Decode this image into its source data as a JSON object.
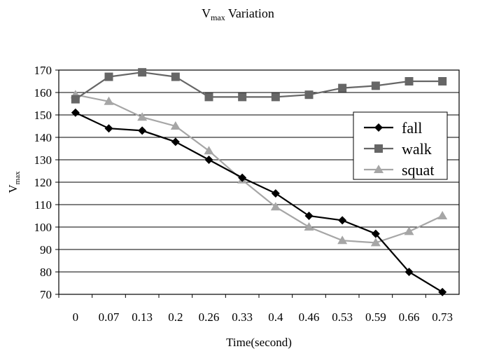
{
  "chart_data": {
    "type": "line",
    "title_main": "V",
    "title_sub": "max",
    "title_rest": " Variation",
    "xlabel": "Time(second)",
    "ylabel_main": "V",
    "ylabel_sub": "max",
    "categories": [
      "0",
      "0.07",
      "0.13",
      "0.2",
      "0.26",
      "0.33",
      "0.4",
      "0.46",
      "0.53",
      "0.59",
      "0.66",
      "0.73"
    ],
    "ylim": [
      70,
      170
    ],
    "yticks": [
      70,
      80,
      90,
      100,
      110,
      120,
      130,
      140,
      150,
      160,
      170
    ],
    "grid": true,
    "legend_position": "right",
    "series": [
      {
        "name": "fall",
        "marker": "diamond",
        "color": "#000000",
        "values": [
          151,
          144,
          143,
          138,
          130,
          122,
          115,
          105,
          103,
          97,
          80,
          71
        ]
      },
      {
        "name": "walk",
        "marker": "square",
        "color": "#666666",
        "values": [
          157,
          167,
          169,
          167,
          158,
          158,
          158,
          159,
          162,
          163,
          165,
          165
        ]
      },
      {
        "name": "squat",
        "marker": "triangle",
        "color": "#a6a6a6",
        "values": [
          159,
          156,
          149,
          145,
          134,
          121,
          109,
          100,
          94,
          93,
          98,
          105
        ]
      }
    ]
  }
}
